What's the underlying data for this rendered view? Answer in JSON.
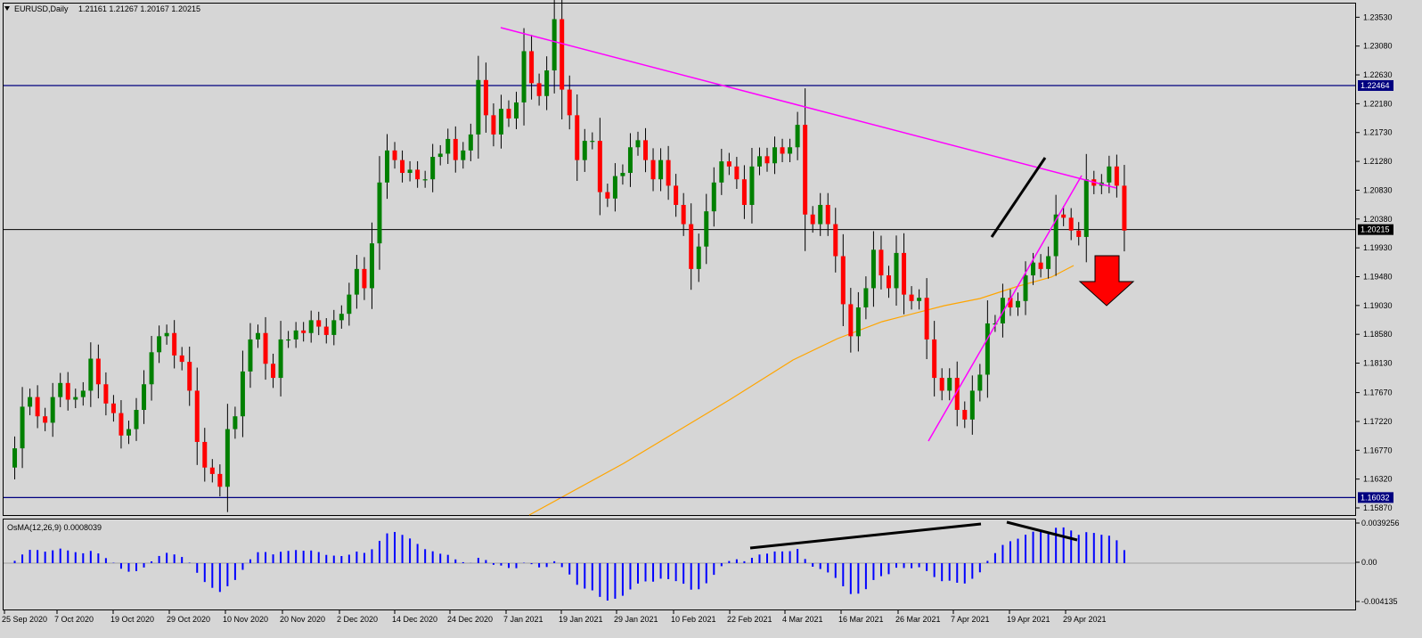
{
  "header": {
    "symbol": "EURUSD,Daily",
    "ohlc": "1.21161 1.21267 1.20167 1.20215"
  },
  "indicator": {
    "title": "OsMA(12,26,9) 0.0008039",
    "ticks": [
      "0.0039256",
      "0.00",
      "-0.004135"
    ]
  },
  "colors": {
    "bg": "#d6d6d6",
    "bull": "#008000",
    "bear": "#ff0000",
    "hline": "#000080",
    "trend": "#ff00ff",
    "ma": "#ffa500",
    "osma": "#0000ff",
    "arrow": "#ff0000"
  },
  "chart_data": {
    "type": "candlestick",
    "y_ticks": [
      "1.23530",
      "1.23080",
      "1.22630",
      "1.22180",
      "1.21730",
      "1.21280",
      "1.20830",
      "1.20380",
      "1.19930",
      "1.19480",
      "1.19030",
      "1.18580",
      "1.18130",
      "1.17670",
      "1.17220",
      "1.16770",
      "1.16320",
      "1.15870"
    ],
    "x_ticks": [
      "25 Sep 2020",
      "7 Oct 2020",
      "19 Oct 2020",
      "29 Oct 2020",
      "10 Nov 2020",
      "20 Nov 2020",
      "2 Dec 2020",
      "14 Dec 2020",
      "24 Dec 2020",
      "7 Jan 2021",
      "19 Jan 2021",
      "29 Jan 2021",
      "10 Feb 2021",
      "22 Feb 2021",
      "4 Mar 2021",
      "16 Mar 2021",
      "26 Mar 2021",
      "7 Apr 2021",
      "19 Apr 2021",
      "29 Apr 2021"
    ],
    "ylim": [
      1.1587,
      1.2377
    ],
    "price_labels": [
      "1.22464",
      "1.20215",
      "1.16032"
    ],
    "horizontal_lines": [
      1.22464,
      1.20215,
      1.16032
    ],
    "closes": [
      1.165,
      1.168,
      1.1745,
      1.176,
      1.173,
      1.172,
      1.176,
      1.1782,
      1.1756,
      1.176,
      1.177,
      1.182,
      1.178,
      1.175,
      1.1735,
      1.17,
      1.171,
      1.174,
      1.178,
      1.183,
      1.1855,
      1.186,
      1.1825,
      1.1815,
      1.177,
      1.169,
      1.165,
      1.164,
      1.162,
      1.171,
      1.173,
      1.18,
      1.185,
      1.186,
      1.1812,
      1.179,
      1.185,
      1.185,
      1.1864,
      1.186,
      1.188,
      1.187,
      1.1857,
      1.188,
      1.189,
      1.192,
      1.196,
      1.193,
      1.2,
      1.2095,
      1.2145,
      1.213,
      1.211,
      1.2115,
      1.21,
      1.21,
      1.2135,
      1.214,
      1.2163,
      1.213,
      1.2145,
      1.217,
      1.2255,
      1.22,
      1.217,
      1.221,
      1.2195,
      1.222,
      1.23,
      1.225,
      1.223,
      1.227,
      1.235,
      1.224,
      1.22,
      1.213,
      1.216,
      1.216,
      1.208,
      1.207,
      1.2105,
      1.211,
      1.215,
      1.2161,
      1.213,
      1.21,
      1.213,
      1.209,
      1.206,
      1.203,
      1.196,
      1.1995,
      1.205,
      1.2095,
      1.2128,
      1.212,
      1.21,
      1.206,
      1.212,
      1.2136,
      1.2125,
      1.215,
      1.214,
      1.215,
      1.2185,
      1.2045,
      1.203,
      1.206,
      1.203,
      1.198,
      1.1905,
      1.1855,
      1.19,
      1.193,
      1.199,
      1.195,
      1.193,
      1.1985,
      1.192,
      1.191,
      1.1915,
      1.185,
      1.179,
      1.177,
      1.179,
      1.174,
      1.1725,
      1.177,
      1.1795,
      1.1875,
      1.1875,
      1.1915,
      1.19,
      1.191,
      1.195,
      1.197,
      1.196,
      1.198,
      1.2045,
      1.204,
      1.202,
      1.201,
      1.21,
      1.209,
      1.2095,
      1.212,
      1.209,
      1.202
    ]
  }
}
